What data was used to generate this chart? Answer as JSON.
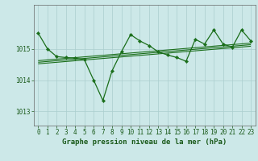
{
  "title": "Graphe pression niveau de la mer (hPa)",
  "bg_color": "#cce8e8",
  "plot_bg_color": "#cce8e8",
  "line_color": "#1a6e1a",
  "marker_color": "#1a6e1a",
  "grid_color": "#aacece",
  "axis_label_color": "#1a5a1a",
  "ylim": [
    1012.55,
    1016.4
  ],
  "xlim": [
    -0.5,
    23.5
  ],
  "yticks": [
    1013,
    1014,
    1015
  ],
  "xticks": [
    0,
    1,
    2,
    3,
    4,
    5,
    6,
    7,
    8,
    9,
    10,
    11,
    12,
    13,
    14,
    15,
    16,
    17,
    18,
    19,
    20,
    21,
    22,
    23
  ],
  "data_x": [
    0,
    1,
    2,
    3,
    4,
    5,
    6,
    7,
    8,
    9,
    10,
    11,
    12,
    13,
    14,
    15,
    16,
    17,
    18,
    19,
    20,
    21,
    22,
    23
  ],
  "data_y": [
    1015.5,
    1015.0,
    1014.75,
    1014.72,
    1014.7,
    1014.65,
    1014.0,
    1013.35,
    1014.3,
    1014.9,
    1015.45,
    1015.25,
    1015.1,
    1014.9,
    1014.8,
    1014.72,
    1014.6,
    1015.3,
    1015.15,
    1015.6,
    1015.15,
    1015.05,
    1015.6,
    1015.25
  ],
  "trend_lines": [
    [
      1014.62,
      1015.18
    ],
    [
      1014.57,
      1015.13
    ],
    [
      1014.52,
      1015.08
    ]
  ],
  "tick_fontsize": 5.5,
  "label_fontsize": 6.5,
  "title_fontsize": 7.0
}
